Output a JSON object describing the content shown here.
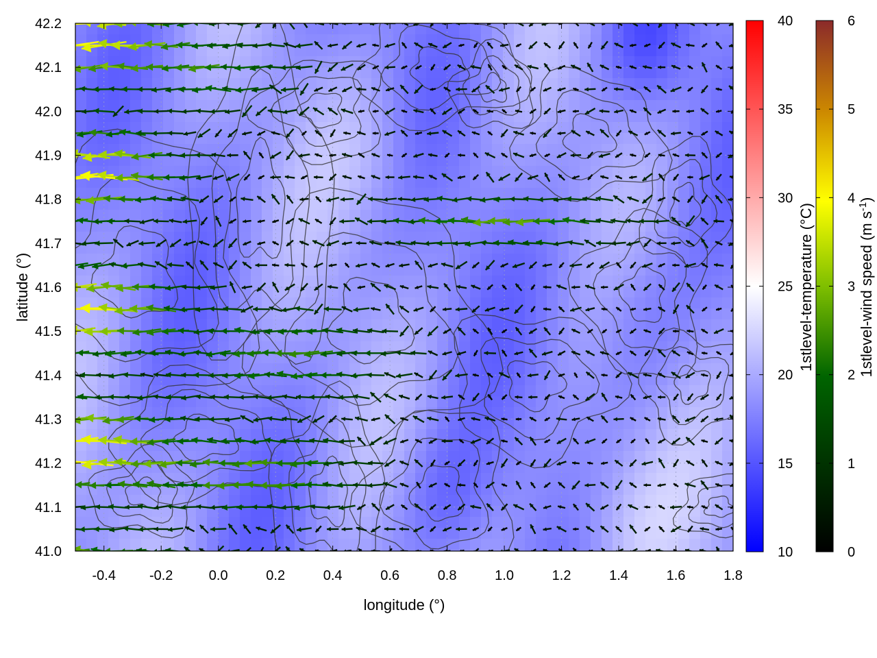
{
  "chart_data": {
    "type": "heatmap",
    "xlabel": "longitude (°)",
    "ylabel": "latitude (°)",
    "xlim": [
      -0.5,
      1.8
    ],
    "ylim": [
      41.0,
      42.2
    ],
    "xticks": [
      "-0.4",
      "-0.2",
      "0.0",
      "0.2",
      "0.4",
      "0.6",
      "0.8",
      "1.0",
      "1.2",
      "1.4",
      "1.6",
      "1.8"
    ],
    "xtick_values": [
      -0.4,
      -0.2,
      0.0,
      0.2,
      0.4,
      0.6,
      0.8,
      1.0,
      1.2,
      1.4,
      1.6,
      1.8
    ],
    "yticks": [
      "41.0",
      "41.1",
      "41.2",
      "41.3",
      "41.4",
      "41.5",
      "41.6",
      "41.7",
      "41.8",
      "41.9",
      "42.0",
      "42.1",
      "42.2"
    ],
    "ytick_values": [
      41.0,
      41.1,
      41.2,
      41.3,
      41.4,
      41.5,
      41.6,
      41.7,
      41.8,
      41.9,
      42.0,
      42.1,
      42.2
    ],
    "grid": true,
    "layers": [
      "temperature field",
      "terrain contours",
      "wind vectors"
    ],
    "temperature_colorbar": {
      "label": "1stlevel-temperature (°C)",
      "range": [
        10,
        40
      ],
      "ticks": [
        "10",
        "15",
        "20",
        "25",
        "30",
        "35",
        "40"
      ],
      "tick_values": [
        10,
        15,
        20,
        25,
        30,
        35,
        40
      ],
      "colors": [
        "#0000ff",
        "#ffffff",
        "#ff0000"
      ]
    },
    "wind_colorbar": {
      "label_main": "1stlevel-wind speed (m s",
      "label_sup": "-1",
      "label_end": ")",
      "range": [
        0,
        6
      ],
      "ticks": [
        "0",
        "1",
        "2",
        "3",
        "4",
        "5",
        "6"
      ],
      "tick_values": [
        0,
        1,
        2,
        3,
        4,
        5,
        6
      ],
      "colors": [
        "#000000",
        "#006400",
        "#7fbf00",
        "#ffff00",
        "#cc8800",
        "#8b2a2a"
      ]
    },
    "wind_general_direction": "east-to-west (easterly flow)",
    "temperature_typical_range": [
      15,
      23
    ]
  }
}
